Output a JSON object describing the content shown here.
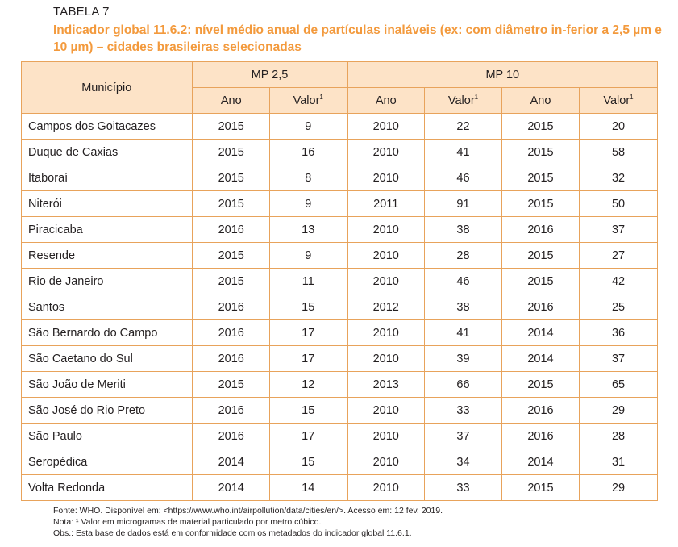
{
  "table_label": "TABELA 7",
  "title": "Indicador global 11.6.2: nível médio anual de partículas inaláveis (ex: com diâmetro in-ferior a 2,5 µm e 10 µm) – cidades brasileiras selecionadas",
  "header": {
    "municipio": "Município",
    "mp25": "MP 2,5",
    "mp10": "MP 10",
    "ano": "Ano",
    "valor": "Valor",
    "valor_sup": "1"
  },
  "rows": [
    [
      "Campos dos Goitacazes",
      "2015",
      "9",
      "2010",
      "22",
      "2015",
      "20"
    ],
    [
      "Duque de Caxias",
      "2015",
      "16",
      "2010",
      "41",
      "2015",
      "58"
    ],
    [
      "Itaboraí",
      "2015",
      "8",
      "2010",
      "46",
      "2015",
      "32"
    ],
    [
      "Niterói",
      "2015",
      "9",
      "2011",
      "91",
      "2015",
      "50"
    ],
    [
      "Piracicaba",
      "2016",
      "13",
      "2010",
      "38",
      "2016",
      "37"
    ],
    [
      "Resende",
      "2015",
      "9",
      "2010",
      "28",
      "2015",
      "27"
    ],
    [
      "Rio de Janeiro",
      "2015",
      "11",
      "2010",
      "46",
      "2015",
      "42"
    ],
    [
      "Santos",
      "2016",
      "15",
      "2012",
      "38",
      "2016",
      "25"
    ],
    [
      "São Bernardo do Campo",
      "2016",
      "17",
      "2010",
      "41",
      "2014",
      "36"
    ],
    [
      "São Caetano do Sul",
      "2016",
      "17",
      "2010",
      "39",
      "2014",
      "37"
    ],
    [
      "São João de Meriti",
      "2015",
      "12",
      "2013",
      "66",
      "2015",
      "65"
    ],
    [
      "São José do Rio Preto",
      "2016",
      "15",
      "2010",
      "33",
      "2016",
      "29"
    ],
    [
      "São Paulo",
      "2016",
      "17",
      "2010",
      "37",
      "2016",
      "28"
    ],
    [
      "Seropédica",
      "2014",
      "15",
      "2010",
      "34",
      "2014",
      "31"
    ],
    [
      "Volta Redonda",
      "2014",
      "14",
      "2010",
      "33",
      "2015",
      "29"
    ]
  ],
  "notes": {
    "fonte": "Fonte: WHO. Disponível em: <https://www.who.int/airpollution/data/cities/en/>. Acesso em: 12 fev. 2019.",
    "nota": "Nota: ¹ Valor em microgramas de material particulado por metro cúbico.",
    "obs": "Obs.: Esta base de dados está em conformidade com os metadados do indicador global 11.6.1."
  },
  "colors": {
    "title": "#f39a3d",
    "header_bg": "#fde3c7",
    "border": "#e8a35b"
  }
}
